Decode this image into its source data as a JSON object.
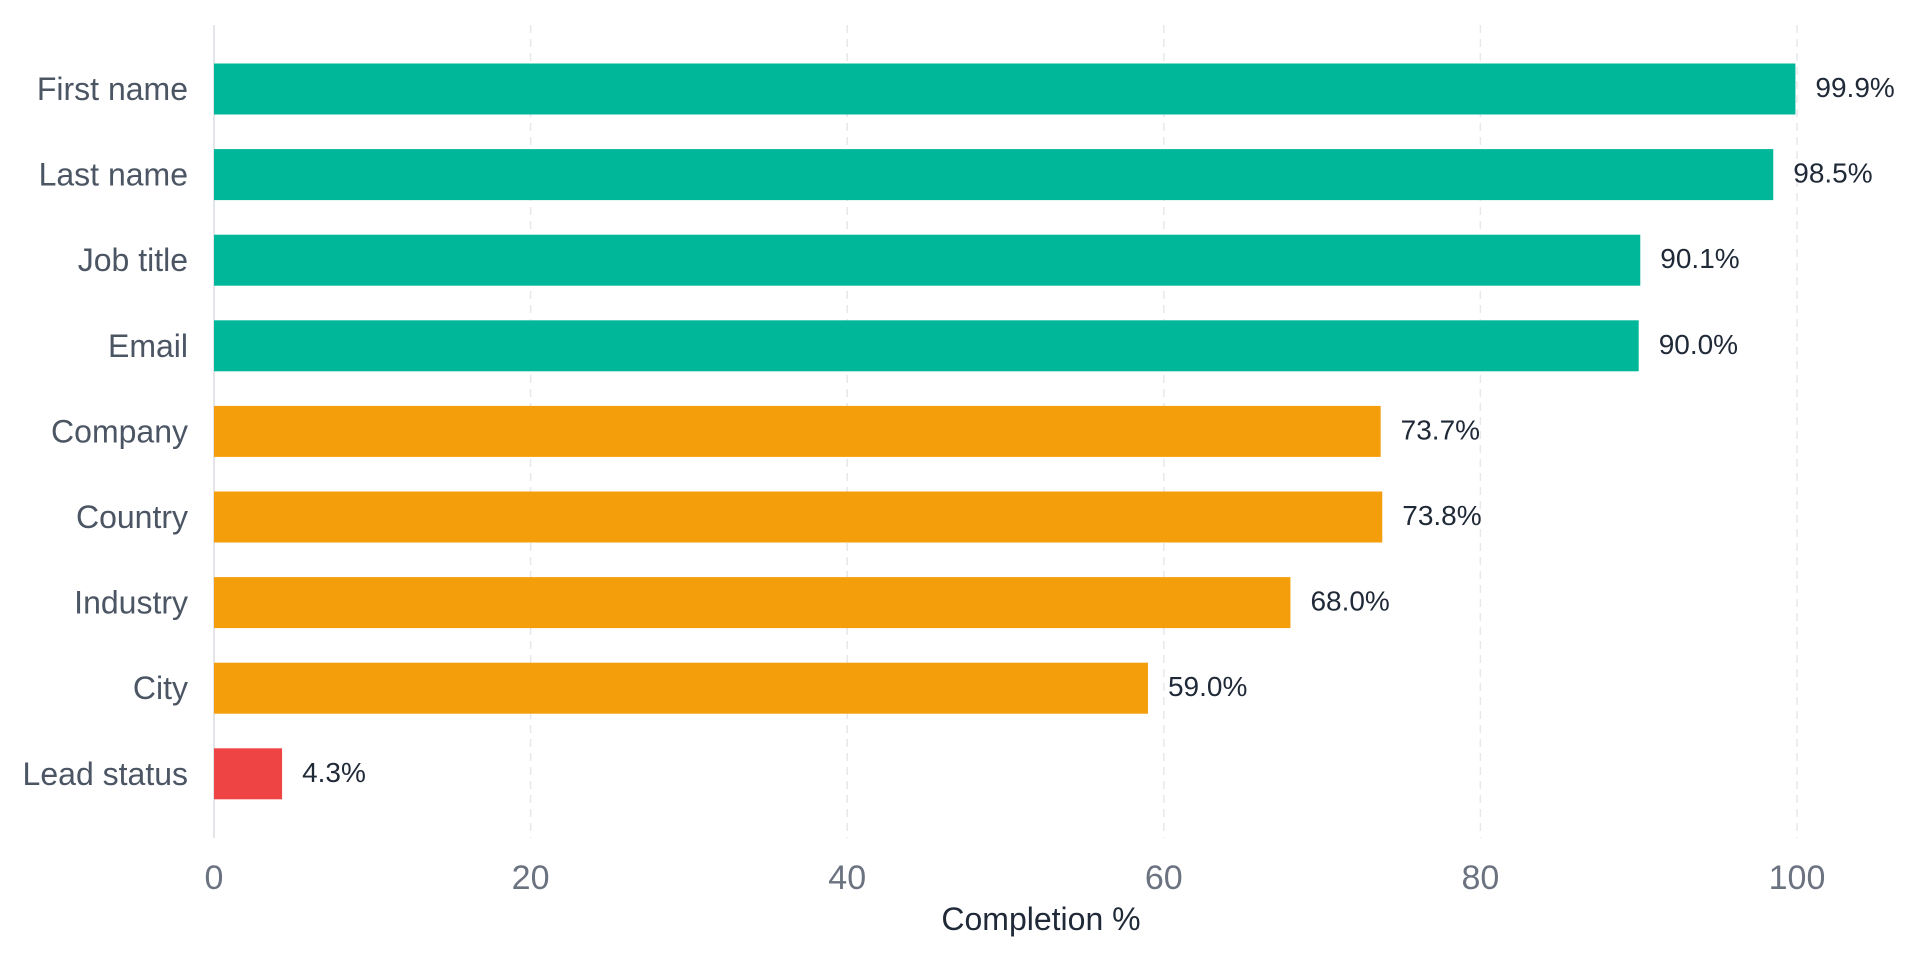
{
  "chart_data": {
    "type": "bar",
    "orientation": "horizontal",
    "categories": [
      "First name",
      "Last name",
      "Job title",
      "Email",
      "Company",
      "Country",
      "Industry",
      "City",
      "Lead status"
    ],
    "values": [
      99.9,
      98.5,
      90.1,
      90.0,
      73.7,
      73.8,
      68.0,
      59.0,
      4.3
    ],
    "value_labels": [
      "99.9%",
      "98.5%",
      "90.1%",
      "90.0%",
      "73.7%",
      "73.8%",
      "68.0%",
      "59.0%",
      "4.3%"
    ],
    "bar_colors": [
      "#00b899",
      "#00b899",
      "#00b899",
      "#00b899",
      "#f59e0b",
      "#f59e0b",
      "#f59e0b",
      "#f59e0b",
      "#ef4444"
    ],
    "title": "",
    "xlabel": "Completion %",
    "ylabel": "",
    "xlim": [
      0,
      100
    ],
    "xticks": [
      0,
      20,
      40,
      60,
      80,
      100
    ],
    "grid": "vertical dashed",
    "legend": "none"
  }
}
